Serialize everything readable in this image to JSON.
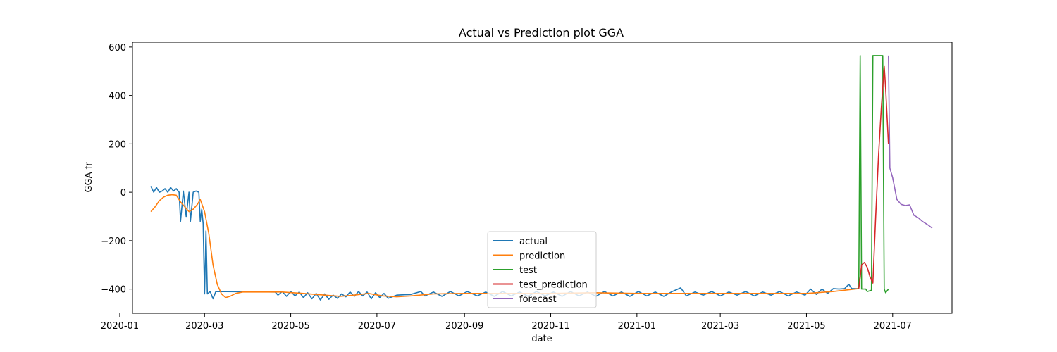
{
  "chart_data": {
    "type": "line",
    "title": "Actual vs Prediction plot GGA",
    "xlabel": "date",
    "ylabel": "GGA fr",
    "x_axis": "date",
    "xlim": [
      "2020-01-10",
      "2021-08-12"
    ],
    "ylim": [
      -500,
      620
    ],
    "xticks": [
      "2020-01-01",
      "2020-03-01",
      "2020-05-01",
      "2020-07-01",
      "2020-09-01",
      "2020-11-01",
      "2021-01-01",
      "2021-03-01",
      "2021-05-01",
      "2021-07-01"
    ],
    "xtick_labels": [
      "2020-01",
      "2020-03",
      "2020-05",
      "2020-07",
      "2020-09",
      "2020-11",
      "2021-01",
      "2021-03",
      "2021-05",
      "2021-07"
    ],
    "yticks": [
      -400,
      -200,
      0,
      200,
      400,
      600
    ],
    "ytick_labels": [
      "−400",
      "−200",
      "0",
      "200",
      "400",
      "600"
    ],
    "grid": false,
    "legend_position": "lower-center",
    "series": [
      {
        "name": "actual",
        "color": "#1f77b4",
        "points": [
          [
            "2020-01-23",
            25
          ],
          [
            "2020-01-25",
            0
          ],
          [
            "2020-01-27",
            20
          ],
          [
            "2020-01-29",
            0
          ],
          [
            "2020-01-31",
            5
          ],
          [
            "2020-02-02",
            15
          ],
          [
            "2020-02-04",
            0
          ],
          [
            "2020-02-06",
            20
          ],
          [
            "2020-02-08",
            5
          ],
          [
            "2020-02-10",
            15
          ],
          [
            "2020-02-12",
            0
          ],
          [
            "2020-02-13",
            -120
          ],
          [
            "2020-02-15",
            5
          ],
          [
            "2020-02-17",
            -100
          ],
          [
            "2020-02-19",
            0
          ],
          [
            "2020-02-20",
            -120
          ],
          [
            "2020-02-22",
            0
          ],
          [
            "2020-02-24",
            5
          ],
          [
            "2020-02-26",
            0
          ],
          [
            "2020-02-27",
            -120
          ],
          [
            "2020-02-28",
            -70
          ],
          [
            "2020-02-29",
            -130
          ],
          [
            "2020-03-01",
            -420
          ],
          [
            "2020-03-02",
            -160
          ],
          [
            "2020-03-03",
            -420
          ],
          [
            "2020-03-05",
            -410
          ],
          [
            "2020-03-07",
            -440
          ],
          [
            "2020-03-09",
            -410
          ],
          [
            "2020-04-20",
            -412
          ],
          [
            "2020-04-22",
            -425
          ],
          [
            "2020-04-25",
            -410
          ],
          [
            "2020-04-28",
            -430
          ],
          [
            "2020-05-01",
            -410
          ],
          [
            "2020-05-04",
            -428
          ],
          [
            "2020-05-07",
            -412
          ],
          [
            "2020-05-10",
            -435
          ],
          [
            "2020-05-13",
            -415
          ],
          [
            "2020-05-16",
            -440
          ],
          [
            "2020-05-19",
            -418
          ],
          [
            "2020-05-22",
            -445
          ],
          [
            "2020-05-25",
            -420
          ],
          [
            "2020-05-28",
            -442
          ],
          [
            "2020-05-31",
            -425
          ],
          [
            "2020-06-03",
            -438
          ],
          [
            "2020-06-06",
            -420
          ],
          [
            "2020-06-09",
            -432
          ],
          [
            "2020-06-12",
            -412
          ],
          [
            "2020-06-15",
            -430
          ],
          [
            "2020-06-18",
            -410
          ],
          [
            "2020-06-21",
            -428
          ],
          [
            "2020-06-24",
            -412
          ],
          [
            "2020-06-27",
            -440
          ],
          [
            "2020-06-30",
            -415
          ],
          [
            "2020-07-03",
            -435
          ],
          [
            "2020-07-06",
            -418
          ],
          [
            "2020-07-09",
            -438
          ],
          [
            "2020-07-15",
            -425
          ],
          [
            "2020-07-25",
            -422
          ],
          [
            "2020-08-01",
            -410
          ],
          [
            "2020-08-04",
            -428
          ],
          [
            "2020-08-10",
            -412
          ],
          [
            "2020-08-16",
            -430
          ],
          [
            "2020-08-22",
            -410
          ],
          [
            "2020-08-28",
            -428
          ],
          [
            "2020-09-03",
            -410
          ],
          [
            "2020-09-10",
            -428
          ],
          [
            "2020-09-16",
            -412
          ],
          [
            "2020-09-22",
            -430
          ],
          [
            "2020-09-28",
            -410
          ],
          [
            "2020-10-04",
            -428
          ],
          [
            "2020-10-10",
            -412
          ],
          [
            "2020-10-16",
            -430
          ],
          [
            "2020-10-22",
            -410
          ],
          [
            "2020-10-28",
            -428
          ],
          [
            "2020-11-03",
            -412
          ],
          [
            "2020-11-09",
            -430
          ],
          [
            "2020-11-15",
            -410
          ],
          [
            "2020-11-21",
            -428
          ],
          [
            "2020-11-27",
            -412
          ],
          [
            "2020-12-03",
            -430
          ],
          [
            "2020-12-09",
            -410
          ],
          [
            "2020-12-15",
            -428
          ],
          [
            "2020-12-21",
            -412
          ],
          [
            "2020-12-27",
            -430
          ],
          [
            "2021-01-02",
            -410
          ],
          [
            "2021-01-08",
            -428
          ],
          [
            "2021-01-14",
            -412
          ],
          [
            "2021-01-20",
            -430
          ],
          [
            "2021-01-26",
            -410
          ],
          [
            "2021-02-01",
            -395
          ],
          [
            "2021-02-05",
            -428
          ],
          [
            "2021-02-11",
            -412
          ],
          [
            "2021-02-17",
            -425
          ],
          [
            "2021-02-23",
            -410
          ],
          [
            "2021-03-01",
            -428
          ],
          [
            "2021-03-07",
            -412
          ],
          [
            "2021-03-13",
            -425
          ],
          [
            "2021-03-19",
            -410
          ],
          [
            "2021-03-25",
            -428
          ],
          [
            "2021-03-31",
            -412
          ],
          [
            "2021-04-06",
            -425
          ],
          [
            "2021-04-12",
            -410
          ],
          [
            "2021-04-18",
            -428
          ],
          [
            "2021-04-24",
            -412
          ],
          [
            "2021-04-30",
            -425
          ],
          [
            "2021-05-04",
            -400
          ],
          [
            "2021-05-08",
            -422
          ],
          [
            "2021-05-12",
            -400
          ],
          [
            "2021-05-16",
            -418
          ],
          [
            "2021-05-20",
            -398
          ],
          [
            "2021-05-24",
            -400
          ],
          [
            "2021-05-28",
            -398
          ],
          [
            "2021-05-31",
            -380
          ],
          [
            "2021-06-02",
            -398
          ],
          [
            "2021-06-07",
            -398
          ]
        ]
      },
      {
        "name": "prediction",
        "color": "#ff7f0e",
        "points": [
          [
            "2020-01-23",
            -80
          ],
          [
            "2020-01-26",
            -60
          ],
          [
            "2020-01-29",
            -35
          ],
          [
            "2020-02-01",
            -20
          ],
          [
            "2020-02-04",
            -12
          ],
          [
            "2020-02-07",
            -10
          ],
          [
            "2020-02-10",
            -12
          ],
          [
            "2020-02-13",
            -40
          ],
          [
            "2020-02-16",
            -60
          ],
          [
            "2020-02-19",
            -80
          ],
          [
            "2020-02-22",
            -70
          ],
          [
            "2020-02-25",
            -50
          ],
          [
            "2020-02-27",
            -30
          ],
          [
            "2020-03-01",
            -80
          ],
          [
            "2020-03-04",
            -170
          ],
          [
            "2020-03-07",
            -300
          ],
          [
            "2020-03-10",
            -380
          ],
          [
            "2020-03-13",
            -420
          ],
          [
            "2020-03-16",
            -435
          ],
          [
            "2020-03-19",
            -430
          ],
          [
            "2020-03-23",
            -418
          ],
          [
            "2020-03-28",
            -412
          ],
          [
            "2020-04-15",
            -412
          ],
          [
            "2020-04-25",
            -412
          ],
          [
            "2020-05-10",
            -418
          ],
          [
            "2020-05-25",
            -425
          ],
          [
            "2020-06-05",
            -430
          ],
          [
            "2020-06-15",
            -425
          ],
          [
            "2020-06-25",
            -418
          ],
          [
            "2020-07-05",
            -428
          ],
          [
            "2020-07-15",
            -432
          ],
          [
            "2020-07-25",
            -428
          ],
          [
            "2020-08-10",
            -420
          ],
          [
            "2020-09-01",
            -418
          ],
          [
            "2020-10-01",
            -418
          ],
          [
            "2020-11-01",
            -418
          ],
          [
            "2020-12-01",
            -415
          ],
          [
            "2021-01-01",
            -418
          ],
          [
            "2021-02-01",
            -418
          ],
          [
            "2021-03-01",
            -418
          ],
          [
            "2021-04-01",
            -418
          ],
          [
            "2021-05-01",
            -418
          ],
          [
            "2021-05-20",
            -410
          ],
          [
            "2021-06-07",
            -398
          ]
        ]
      },
      {
        "name": "test",
        "color": "#2ca02c",
        "points": [
          [
            "2021-06-07",
            -400
          ],
          [
            "2021-06-08",
            565
          ],
          [
            "2021-06-09",
            -400
          ],
          [
            "2021-06-12",
            -400
          ],
          [
            "2021-06-13",
            -410
          ],
          [
            "2021-06-16",
            -405
          ],
          [
            "2021-06-17",
            565
          ],
          [
            "2021-06-24",
            565
          ],
          [
            "2021-06-25",
            -400
          ],
          [
            "2021-06-26",
            -415
          ],
          [
            "2021-06-28",
            -400
          ]
        ]
      },
      {
        "name": "test_prediction",
        "color": "#d62728",
        "points": [
          [
            "2021-06-07",
            -398
          ],
          [
            "2021-06-09",
            -300
          ],
          [
            "2021-06-11",
            -290
          ],
          [
            "2021-06-13",
            -310
          ],
          [
            "2021-06-15",
            -350
          ],
          [
            "2021-06-17",
            -375
          ],
          [
            "2021-06-19",
            -100
          ],
          [
            "2021-06-21",
            150
          ],
          [
            "2021-06-23",
            350
          ],
          [
            "2021-06-25",
            520
          ],
          [
            "2021-06-26",
            430
          ],
          [
            "2021-06-28",
            200
          ]
        ]
      },
      {
        "name": "forecast",
        "color": "#9467bd",
        "points": [
          [
            "2021-06-28",
            565
          ],
          [
            "2021-06-29",
            100
          ],
          [
            "2021-07-01",
            60
          ],
          [
            "2021-07-04",
            -30
          ],
          [
            "2021-07-07",
            -50
          ],
          [
            "2021-07-10",
            -55
          ],
          [
            "2021-07-13",
            -52
          ],
          [
            "2021-07-16",
            -95
          ],
          [
            "2021-07-19",
            -105
          ],
          [
            "2021-07-22",
            -120
          ],
          [
            "2021-07-26",
            -135
          ],
          [
            "2021-07-29",
            -148
          ]
        ]
      }
    ]
  }
}
